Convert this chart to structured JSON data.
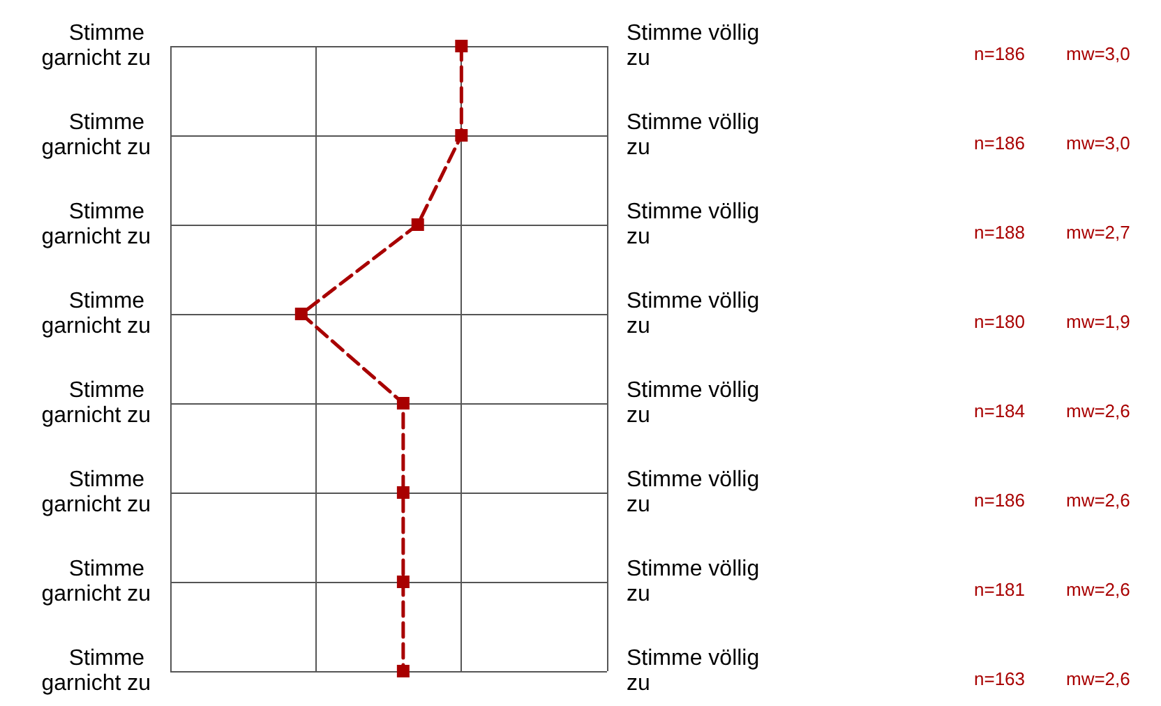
{
  "chart_data": {
    "type": "line",
    "orientation": "horizontal",
    "categories": [
      "Stimme garnicht zu",
      "Stimme garnicht zu",
      "Stimme garnicht zu",
      "Stimme garnicht zu",
      "Stimme garnicht zu",
      "Stimme garnicht zu",
      "Stimme garnicht zu",
      "Stimme garnicht zu"
    ],
    "series": [
      {
        "color": "#a80000",
        "values": [
          3.0,
          3.0,
          2.7,
          1.9,
          2.6,
          2.6,
          2.6,
          2.6
        ],
        "value_labels": [
          "mw=3,0",
          "mw=3,0",
          "mw=2,7",
          "mw=1,9",
          "mw=2,6",
          "mw=2,6",
          "mw=2,6",
          "mw=2,6"
        ]
      }
    ],
    "xlim": [
      1,
      4
    ],
    "xticks": [
      {
        "value": 1,
        "label": null
      },
      {
        "value": 2,
        "label": null
      },
      {
        "value": 3,
        "label": null
      },
      {
        "value": 4,
        "label": null
      }
    ],
    "grid": true,
    "marker": "square",
    "line_style": "dashed",
    "annotations": [
      "Stimme völlig zu",
      "Stimme völlig zu",
      "Stimme völlig zu",
      "Stimme völlig zu",
      "Stimme völlig zu",
      "Stimme völlig zu",
      "Stimme völlig zu",
      "Stimme völlig zu",
      "n=186",
      "n=186",
      "n=188",
      "n=180",
      "n=184",
      "n=186",
      "n=181",
      "n=163"
    ]
  }
}
